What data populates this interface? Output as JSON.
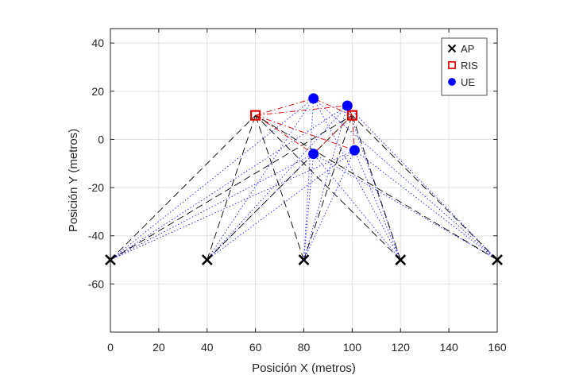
{
  "chart_data": {
    "type": "scatter",
    "title": "",
    "xlabel": "Posición X (metros)",
    "ylabel": "Posición Y (metros)",
    "xlim": [
      0,
      160
    ],
    "ylim": [
      -80,
      46
    ],
    "xticks": [
      0,
      20,
      40,
      60,
      80,
      100,
      120,
      140,
      160
    ],
    "yticks": [
      40,
      20,
      0,
      -20,
      -40,
      -60
    ],
    "grid": true,
    "legend_position": "top-right",
    "series": [
      {
        "name": "AP",
        "marker": "x",
        "color": "#000000",
        "points": [
          [
            0,
            -50
          ],
          [
            40,
            -50
          ],
          [
            80,
            -50
          ],
          [
            120,
            -50
          ],
          [
            160,
            -50
          ]
        ]
      },
      {
        "name": "RIS",
        "marker": "square",
        "color": "#e00000",
        "points": [
          [
            60,
            10
          ],
          [
            100,
            10
          ]
        ]
      },
      {
        "name": "UE",
        "marker": "circle",
        "color": "#0000ff",
        "points": [
          [
            84,
            17
          ],
          [
            98,
            14
          ],
          [
            84,
            -6
          ],
          [
            101,
            -4.5
          ]
        ]
      }
    ],
    "links": {
      "ap_to_ris": {
        "style": "dashed",
        "color": "#000000"
      },
      "ap_to_ue": {
        "style": "dotted",
        "color": "#2020ff"
      },
      "ris_to_ue": {
        "style": "dash-dot",
        "color": "#e00000"
      }
    }
  }
}
